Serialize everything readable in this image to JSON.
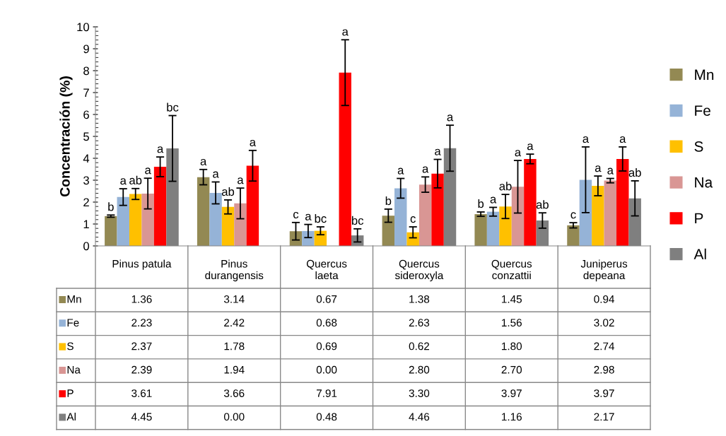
{
  "chart_data": [
    {
      "type": "bar",
      "ylabel": "Concentración (%)",
      "categories": [
        "Pinus patula",
        "Pinus durangensis",
        "Quercus laeta",
        "Quercus sideroxyla",
        "Quercus conzattii",
        "Juniperus depeana"
      ],
      "series": [
        {
          "name": "Mn",
          "color": "#938953",
          "values": [
            1.36,
            3.14,
            0.67,
            1.38,
            1.45,
            0.94
          ],
          "errors": [
            0.05,
            0.35,
            0.4,
            0.3,
            0.1,
            0.12
          ],
          "value_labels": [
            "b",
            "a",
            "c",
            "b",
            "b",
            "c"
          ]
        },
        {
          "name": "Fe",
          "color": "#95b3d7",
          "values": [
            2.23,
            2.42,
            0.68,
            2.63,
            1.56,
            3.02
          ],
          "errors": [
            0.38,
            0.5,
            0.3,
            0.45,
            0.2,
            1.5
          ],
          "value_labels": [
            "a",
            "a",
            "a",
            "a",
            "a",
            "a"
          ]
        },
        {
          "name": "S",
          "color": "#ffc000",
          "values": [
            2.37,
            1.78,
            0.69,
            0.62,
            1.8,
            2.74
          ],
          "errors": [
            0.25,
            0.32,
            0.18,
            0.25,
            0.55,
            0.45
          ],
          "value_labels": [
            "ab",
            "ab",
            "bc",
            "c",
            "ab",
            "a"
          ]
        },
        {
          "name": "Na",
          "color": "#d99694",
          "values": [
            2.39,
            1.94,
            0.0,
            2.8,
            2.7,
            2.98
          ],
          "errors": [
            0.7,
            0.7,
            null,
            0.35,
            1.2,
            0.1
          ],
          "value_labels": [
            "a",
            "a",
            null,
            "a",
            "a",
            "a"
          ]
        },
        {
          "name": "P",
          "color": "#ff0000",
          "values": [
            3.61,
            3.66,
            7.91,
            3.3,
            3.97,
            3.97
          ],
          "errors": [
            0.45,
            0.7,
            1.5,
            0.65,
            0.22,
            0.55
          ],
          "value_labels": [
            "a",
            "a",
            "a",
            "a",
            "a",
            "a"
          ]
        },
        {
          "name": "Al",
          "color": "#7f7f7f",
          "values": [
            4.45,
            0.0,
            0.48,
            4.46,
            1.16,
            2.17
          ],
          "errors": [
            1.5,
            null,
            0.3,
            1.05,
            0.35,
            0.8
          ],
          "value_labels": [
            "bc",
            null,
            "bc",
            "a",
            "ab",
            "ab"
          ]
        }
      ],
      "ylim": [
        0,
        10
      ],
      "yticks": [
        0,
        1,
        2,
        3,
        4,
        5,
        6,
        7,
        8,
        9,
        10
      ],
      "legend": "right",
      "grid": false
    },
    {
      "type": "other",
      "y_categories": [
        "Mn",
        "Fe",
        "S",
        "Na",
        "P",
        "Al"
      ],
      "colors": [
        "#938953",
        "#95b3d7",
        "#ffc000",
        "#d99694",
        "#ff0000",
        "#7f7f7f"
      ],
      "cell_labels": [
        [
          "1.36",
          "3.14",
          "0.67",
          "1.38",
          "1.45",
          "0.94"
        ],
        [
          "2.23",
          "2.42",
          "0.68",
          "2.63",
          "1.56",
          "3.02"
        ],
        [
          "2.37",
          "1.78",
          "0.69",
          "0.62",
          "1.80",
          "2.74"
        ],
        [
          "2.39",
          "1.94",
          "0.00",
          "2.80",
          "2.70",
          "2.98"
        ],
        [
          "3.61",
          "3.66",
          "7.91",
          "3.30",
          "3.97",
          "3.97"
        ],
        [
          "4.45",
          "0.00",
          "0.48",
          "4.46",
          "1.16",
          "2.17"
        ]
      ]
    }
  ]
}
